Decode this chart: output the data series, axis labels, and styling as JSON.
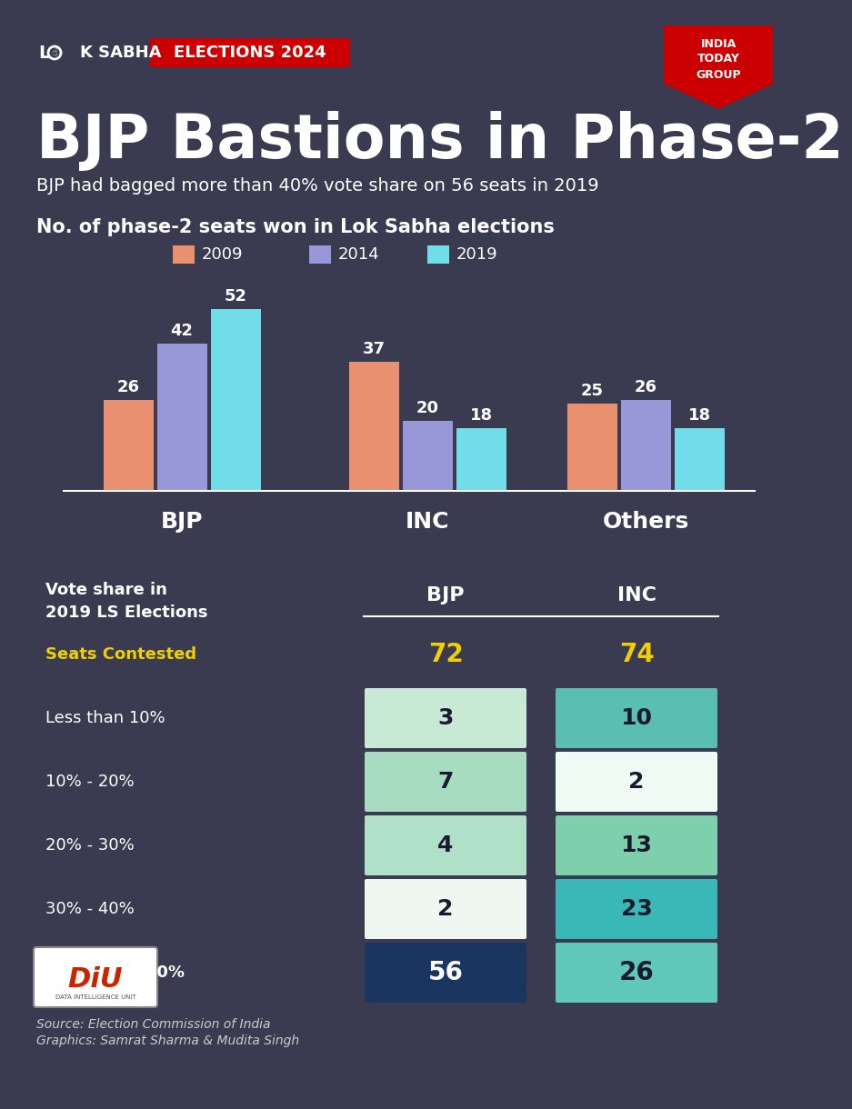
{
  "bg_color": "#3a3a50",
  "title_main": "BJP Bastions in Phase-2",
  "subtitle": "BJP had bagged more than 40% vote share on 56 seats in 2019",
  "bar_chart_title": "No. of phase-2 seats won in Lok Sabha elections",
  "legend_years": [
    "2009",
    "2014",
    "2019"
  ],
  "legend_colors": [
    "#e89070",
    "#9898d8",
    "#70dde8"
  ],
  "bar_groups": [
    "BJP",
    "INC",
    "Others"
  ],
  "bar_data_2009": [
    26,
    37,
    25
  ],
  "bar_data_2014": [
    42,
    20,
    26
  ],
  "bar_data_2019": [
    52,
    18,
    18
  ],
  "bar_colors": [
    "#e89070",
    "#9898d8",
    "#70dde8"
  ],
  "table_rows": [
    {
      "label": "Seats Contested",
      "bjp": "72",
      "inc": "74",
      "highlight": true,
      "bold": true
    },
    {
      "label": "Less than 10%",
      "bjp": "3",
      "inc": "10",
      "highlight": false,
      "bold": false
    },
    {
      "label": "10% - 20%",
      "bjp": "7",
      "inc": "2",
      "highlight": false,
      "bold": false
    },
    {
      "label": "20% - 30%",
      "bjp": "4",
      "inc": "13",
      "highlight": false,
      "bold": false
    },
    {
      "label": "30% - 40%",
      "bjp": "2",
      "inc": "23",
      "highlight": false,
      "bold": false
    },
    {
      "label": "More than 40%",
      "bjp": "56",
      "inc": "26",
      "highlight": false,
      "bold": true
    }
  ],
  "cell_colors_bjp": [
    "none",
    "#c8ead5",
    "#a8dcc0",
    "#b0e0c8",
    "#eef8f0",
    "#1a3560"
  ],
  "cell_colors_inc": [
    "none",
    "#5abfb0",
    "#f0faf5",
    "#7ecfac",
    "#3ab8b8",
    "#60c8b8"
  ],
  "source_text": "Source: Election Commission of India",
  "graphics_text": "Graphics: Samrat Sharma & Mudita Singh",
  "text_color_white": "#ffffff",
  "text_color_yellow": "#f0d000",
  "text_color_dark": "#1a1a2e"
}
